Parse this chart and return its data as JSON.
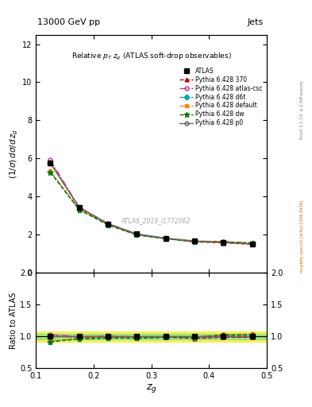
{
  "title_top": "13000 GeV pp",
  "title_right": "Jets",
  "plot_title": "Relative p_{T} z_{g} (ATLAS soft-drop observables)",
  "watermark": "ATLAS_2019_I1772062",
  "right_label": "mcplots.cern.ch [arXiv:1306.3436]",
  "rivet_label": "Rivet 3.1.10; ≥ 2.6M events",
  "xdata": [
    0.125,
    0.175,
    0.225,
    0.275,
    0.325,
    0.375,
    0.425,
    0.475
  ],
  "ATLAS": [
    5.75,
    3.45,
    2.58,
    2.05,
    1.82,
    1.68,
    1.6,
    1.52
  ],
  "ATLAS_err": [
    0.12,
    0.07,
    0.05,
    0.04,
    0.04,
    0.04,
    0.04,
    0.04
  ],
  "py370": [
    5.8,
    3.42,
    2.55,
    2.0,
    1.8,
    1.63,
    1.58,
    1.5
  ],
  "py_atlas_csc": [
    5.92,
    3.45,
    2.6,
    2.04,
    1.82,
    1.65,
    1.6,
    1.53
  ],
  "py_d6t": [
    5.3,
    3.32,
    2.52,
    2.0,
    1.8,
    1.65,
    1.62,
    1.55
  ],
  "py_default": [
    5.35,
    3.35,
    2.54,
    2.02,
    1.82,
    1.68,
    1.65,
    1.58
  ],
  "py_dw": [
    5.28,
    3.32,
    2.52,
    2.0,
    1.8,
    1.66,
    1.64,
    1.57
  ],
  "py_p0": [
    5.75,
    3.45,
    2.58,
    2.05,
    1.82,
    1.68,
    1.6,
    1.52
  ],
  "ratio_py370": [
    1.009,
    0.991,
    0.988,
    0.976,
    0.989,
    0.97,
    0.988,
    0.987
  ],
  "ratio_atlas_csc": [
    1.03,
    1.0,
    1.008,
    0.995,
    1.0,
    0.982,
    1.0,
    1.007
  ],
  "ratio_d6t": [
    0.922,
    0.962,
    0.977,
    0.976,
    0.989,
    0.982,
    1.013,
    1.02
  ],
  "ratio_default": [
    0.93,
    0.971,
    0.984,
    0.985,
    1.0,
    1.0,
    1.031,
    1.039
  ],
  "ratio_dw": [
    0.918,
    0.962,
    0.977,
    0.976,
    0.989,
    0.988,
    1.025,
    1.033
  ],
  "ratio_p0": [
    1.0,
    1.0,
    1.0,
    1.0,
    1.0,
    1.0,
    1.0,
    1.0
  ],
  "xlim": [
    0.1,
    0.5
  ],
  "ylim_main": [
    0,
    12.5
  ],
  "ylim_ratio": [
    0.5,
    2.0
  ],
  "yticks_main": [
    0,
    2,
    4,
    6,
    8,
    10,
    12
  ],
  "yticks_ratio": [
    0.5,
    1.0,
    1.5,
    2.0
  ],
  "xticks": [
    0.1,
    0.2,
    0.3,
    0.4,
    0.5
  ],
  "color_370": "#cc0000",
  "color_atlas_csc": "#cc3399",
  "color_d6t": "#00aaaa",
  "color_default": "#ff8800",
  "color_dw": "#007700",
  "color_p0": "#666666",
  "color_atlas": "#000000",
  "band_yellow": "#eeee00",
  "band_green": "#88dd88",
  "lw": 1.0
}
